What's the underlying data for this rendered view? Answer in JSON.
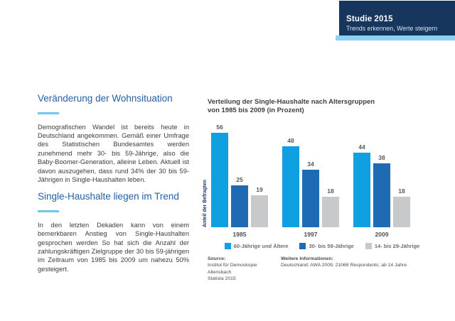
{
  "header": {
    "title_bold": "Studie",
    "title_year": "2015",
    "subtitle": "Trends erkennen, Werte steigern",
    "bg_color": "#16365D",
    "stripe_color": "#8BD2F5"
  },
  "left_column": {
    "section1": {
      "heading": "Veränderung der Wohnsituation",
      "body": "Demografischen Wandel ist bereits heute in Deutschland angekommen. Gemäß einer Umfrage des Statistischen Bundesamtes werden zunehmend mehr 30- bis 59-Jährige, also die Baby-Boomer-Generation, alleine Leben. Aktuell ist davon auszugehen, dass rund 34% der 30 bis 59-Jährigen in Single-Haushalten leben."
    },
    "section2": {
      "heading": "Single-Haushalte liegen im Trend",
      "body": "In den letzten Dekaden kann von einem bemerkbaren Anstieg von Single-Haushalten gesprochen werden So hat sich die Anzahl der zahlungskräftigen Zielgruppe der 30 bis 59-jährigen im Zeitraum von 1985 bis 2009 um nahezu 50% gesteigert."
    },
    "heading_color": "#2161A8",
    "underline_color": "#6FC6EF"
  },
  "chart": {
    "title_line1": "Verteilung der Single-Haushalte nach Altersgruppen",
    "title_line2": "von 1985 bis 2009 (in Prozent)"
  },
  "chart_data": {
    "type": "bar",
    "title": "Verteilung der Single-Haushalte nach Altersgruppen von 1985 bis 2009 (in Prozent)",
    "xlabel": "",
    "ylabel": "Anteil der Befragten",
    "categories": [
      "1985",
      "1997",
      "2009"
    ],
    "series": [
      {
        "name": "60-Jährige und Ältere",
        "color": "#0FA0E2",
        "values": [
          56,
          48,
          44
        ]
      },
      {
        "name": "30- bis 59-Jährige",
        "color": "#1F6BB3",
        "values": [
          25,
          34,
          38
        ]
      },
      {
        "name": "14- bis 29-Jährige",
        "color": "#C7C9CA",
        "values": [
          19,
          18,
          18
        ]
      }
    ],
    "ylim": [
      0,
      60
    ],
    "grid": false,
    "legend_position": "bottom",
    "value_labels": true
  },
  "footnotes": {
    "source_label": "Source:",
    "source_lines": [
      "Institut für Demoskopie Allensbach",
      "Statista 2015"
    ],
    "info_label": "Weitere Informationen:",
    "info_text": "Deutschland; AWA 2009; 21068 Respondents; ab 14 Jahre"
  }
}
